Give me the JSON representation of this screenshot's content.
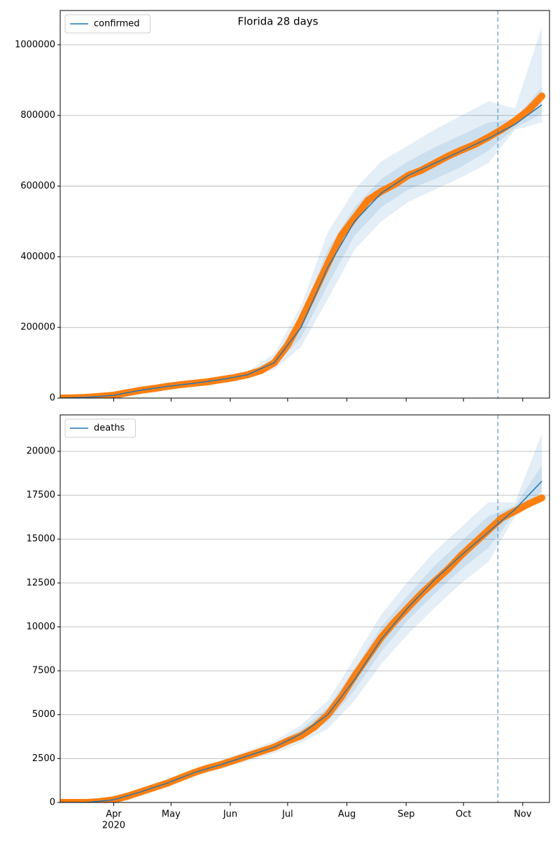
{
  "chart_data": [
    {
      "type": "line",
      "title": "Florida 28 days",
      "series": [
        {
          "name": "confirmed",
          "color": "#1f77b4",
          "x": [
            64,
            78,
            92,
            106,
            120,
            134,
            148,
            162,
            176,
            190,
            204,
            218,
            232,
            246,
            260,
            274,
            288,
            302,
            316
          ],
          "values": [
            0,
            2000,
            8000,
            22000,
            33000,
            42000,
            52000,
            66000,
            100000,
            200000,
            370000,
            500000,
            580000,
            630000,
            665000,
            700000,
            735000,
            775000,
            830000
          ],
          "bands": [
            {
              "lower": [
                0,
                1000,
                6000,
                18000,
                29000,
                38000,
                47000,
                58000,
                80000,
                145000,
                280000,
                420000,
                500000,
                555000,
                590000,
                625000,
                665000,
                760000,
                780000
              ],
              "upper": [
                0,
                3000,
                10000,
                26000,
                37000,
                46000,
                57000,
                75000,
                125000,
                260000,
                470000,
                590000,
                670000,
                715000,
                760000,
                800000,
                840000,
                820000,
                1050000
              ]
            },
            {
              "lower": [
                0,
                1500,
                7000,
                20000,
                31000,
                40000,
                50000,
                62000,
                90000,
                170000,
                320000,
                460000,
                540000,
                590000,
                620000,
                655000,
                700000,
                765000,
                805000
              ],
              "upper": [
                0,
                2500,
                9000,
                24000,
                35000,
                44000,
                54000,
                70000,
                110000,
                230000,
                420000,
                540000,
                620000,
                670000,
                710000,
                745000,
                780000,
                790000,
                880000
              ]
            }
          ]
        }
      ],
      "observed": {
        "color": "#ff7f0e",
        "x": [
          64,
          71,
          78,
          85,
          92,
          99,
          106,
          113,
          120,
          127,
          134,
          141,
          148,
          155,
          162,
          169,
          176,
          183,
          190,
          197,
          204,
          211,
          218,
          225,
          232,
          239,
          246,
          253,
          260,
          267,
          274,
          281,
          288,
          295,
          302,
          309,
          316
        ],
        "values": [
          0,
          500,
          2000,
          5000,
          8000,
          15000,
          22000,
          27000,
          33000,
          38000,
          42000,
          46000,
          52000,
          58000,
          66000,
          78000,
          100000,
          150000,
          220000,
          300000,
          380000,
          460000,
          510000,
          560000,
          585000,
          605000,
          630000,
          645000,
          665000,
          685000,
          702000,
          718000,
          738000,
          760000,
          785000,
          815000,
          855000
        ]
      },
      "vline": 293,
      "xlim": [
        64,
        320
      ],
      "ylim": [
        0,
        1097000
      ],
      "yticks": [
        0,
        200000,
        400000,
        600000,
        800000,
        1000000
      ],
      "grid": true,
      "legend": "upper left"
    },
    {
      "type": "line",
      "series": [
        {
          "name": "deaths",
          "color": "#1f77b4",
          "x": [
            64,
            78,
            92,
            106,
            120,
            134,
            148,
            162,
            176,
            190,
            204,
            218,
            232,
            246,
            260,
            274,
            288,
            302,
            316
          ],
          "values": [
            0,
            0,
            150,
            600,
            1100,
            1700,
            2150,
            2650,
            3150,
            3900,
            5000,
            7000,
            9300,
            11100,
            12700,
            14100,
            15400,
            16700,
            18300
          ],
          "bands": [
            {
              "lower": [
                0,
                0,
                90,
                500,
                950,
                1500,
                1900,
                2350,
                2800,
                3400,
                4200,
                5800,
                7900,
                9600,
                11100,
                12500,
                13700,
                16300,
                17300
              ],
              "upper": [
                0,
                0,
                210,
                700,
                1250,
                1900,
                2400,
                2950,
                3500,
                4400,
                5800,
                8200,
                10700,
                12600,
                14300,
                15700,
                17100,
                17100,
                21000
              ]
            },
            {
              "lower": [
                0,
                0,
                120,
                550,
                1020,
                1600,
                2030,
                2500,
                2980,
                3650,
                4600,
                6400,
                8600,
                10400,
                11900,
                13300,
                14500,
                16500,
                17700
              ],
              "upper": [
                0,
                0,
                180,
                650,
                1180,
                1800,
                2270,
                2800,
                3320,
                4150,
                5400,
                7600,
                10000,
                11800,
                13500,
                14900,
                16300,
                16900,
                19200
              ]
            }
          ]
        }
      ],
      "observed": {
        "color": "#ff7f0e",
        "x": [
          64,
          71,
          78,
          85,
          92,
          99,
          106,
          113,
          120,
          127,
          134,
          141,
          148,
          155,
          162,
          169,
          176,
          183,
          190,
          197,
          204,
          211,
          218,
          225,
          232,
          239,
          246,
          253,
          260,
          267,
          274,
          281,
          288,
          295,
          302,
          309,
          316
        ],
        "values": [
          0,
          0,
          0,
          50,
          150,
          350,
          600,
          850,
          1100,
          1400,
          1700,
          1950,
          2150,
          2400,
          2650,
          2900,
          3150,
          3500,
          3800,
          4300,
          5000,
          6000,
          7200,
          8300,
          9400,
          10300,
          11100,
          11900,
          12600,
          13300,
          14100,
          14800,
          15500,
          16200,
          16600,
          17000,
          17350
        ]
      },
      "vline": 293,
      "xlim": [
        64,
        320
      ],
      "ylim": [
        0,
        22075
      ],
      "yticks": [
        0,
        2500,
        5000,
        7500,
        10000,
        12500,
        15000,
        17500,
        20000
      ],
      "grid": true,
      "legend": "upper left",
      "xticks": [
        {
          "value": 92,
          "label": "Apr"
        },
        {
          "value": 122,
          "label": "May"
        },
        {
          "value": 153,
          "label": "Jun"
        },
        {
          "value": 183,
          "label": "Jul"
        },
        {
          "value": 214,
          "label": "Aug"
        },
        {
          "value": 245,
          "label": "Sep"
        },
        {
          "value": 275,
          "label": "Oct"
        },
        {
          "value": 306,
          "label": "Nov"
        }
      ],
      "year_label": "2020"
    }
  ]
}
